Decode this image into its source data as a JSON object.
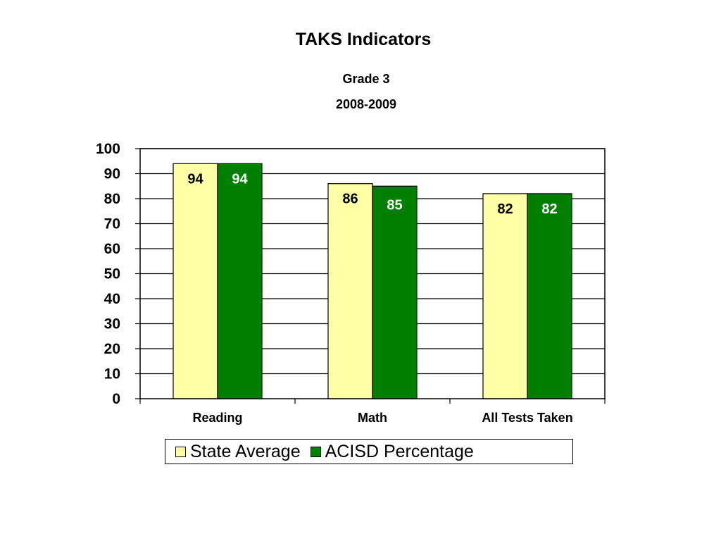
{
  "chart_data": {
    "type": "bar",
    "title": "TAKS Indicators",
    "subtitle": [
      "Grade 3",
      "2008-2009"
    ],
    "categories": [
      "Reading",
      "Math",
      "All Tests Taken"
    ],
    "series": [
      {
        "name": "State Average",
        "values": [
          94,
          86,
          82
        ],
        "color": "#FFFFA6"
      },
      {
        "name": "ACISD Percentage",
        "values": [
          94,
          85,
          82
        ],
        "color": "#007F00"
      }
    ],
    "ylim": [
      0,
      100
    ],
    "yticks": [
      0,
      10,
      20,
      30,
      40,
      50,
      60,
      70,
      80,
      90,
      100
    ],
    "grid": true,
    "legend_position": "bottom",
    "data_label_colors": [
      "#000000",
      "#FFFFFF"
    ]
  }
}
